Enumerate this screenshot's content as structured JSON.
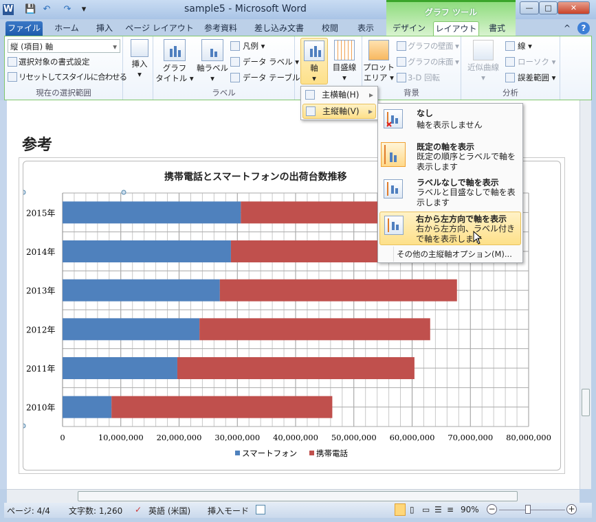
{
  "window": {
    "title": "sample5 - Microsoft Word",
    "context_tools": "グラフ ツール",
    "minimize": "—",
    "restore": "□",
    "close": "✕"
  },
  "quick_access": {
    "app_icon": "W",
    "save": "💾",
    "undo": "↶",
    "redo": "↷",
    "customize": "▾"
  },
  "tabs": [
    "ファイル",
    "ホーム",
    "挿入",
    "ページ レイアウト",
    "参考資料",
    "差し込み文書",
    "校閲",
    "表示",
    "デザイン",
    "レイアウト",
    "書式"
  ],
  "help": "?",
  "ribbon": {
    "selection": {
      "dropdown_value": "縦 (項目) 軸",
      "format_selection": "選択対象の書式設定",
      "reset_style": "リセットしてスタイルに合わせる",
      "label": "現在の選択範囲"
    },
    "insert": {
      "label": "挿入"
    },
    "labels": {
      "chart_title": "グラフ\nタイトル ▾",
      "axis_titles": "軸ラベル",
      "legend": "凡例 ▾",
      "data_labels": "データ ラベル ▾",
      "data_table": "データ テーブル ▾",
      "label": "ラベル"
    },
    "axes": {
      "axes": "軸",
      "gridlines": "目盛線"
    },
    "background": {
      "plot_area": "プロット\nエリア ▾",
      "chart_wall": "グラフの壁面 ▾",
      "chart_floor": "グラフの床面 ▾",
      "rotation": "3-D 回転",
      "label": "背景"
    },
    "analysis": {
      "trendline": "近似曲線",
      "lines": "線 ▾",
      "updown_bars": "ローソク ▾",
      "error_bars": "誤差範囲 ▾",
      "label": "分析"
    }
  },
  "axes_menu": {
    "items": [
      "主横軸(H)",
      "主縦軸(V)"
    ]
  },
  "vertical_axis_menu": {
    "items": [
      {
        "title": "なし",
        "desc": "軸を表示しません"
      },
      {
        "title": "既定の軸を表示",
        "desc": "既定の順序とラベルで軸を表示します"
      },
      {
        "title": "ラベルなしで軸を表示",
        "desc": "ラベルと目盛なしで軸を表示します"
      },
      {
        "title": "右から左方向で軸を表示",
        "desc": "右から左方向、ラベル付きで軸を表示します"
      }
    ],
    "more": "その他の主縦軸オプション(M)..."
  },
  "document": {
    "heading": "参考"
  },
  "chart_data": {
    "type": "bar",
    "stacked": true,
    "orientation": "horizontal",
    "title": "携帯電話とスマートフォンの出荷台数推移",
    "categories": [
      "2015年",
      "2014年",
      "2013年",
      "2012年",
      "2011年",
      "2010年"
    ],
    "series": [
      {
        "name": "スマートフォン",
        "color": "#4f81bd",
        "values": [
          30600000,
          28900000,
          27000000,
          23500000,
          19700000,
          8400000
        ]
      },
      {
        "name": "携帯電話",
        "color": "#c0504d",
        "values": [
          32400000,
          36100000,
          40700000,
          39600000,
          40700000,
          37900000
        ]
      }
    ],
    "xlim": [
      0,
      80000000
    ],
    "xticks": [
      "0",
      "10,000,000",
      "20,000,000",
      "30,000,000",
      "40,000,000",
      "50,000,000",
      "60,000,000",
      "70,000,000",
      "80,000,000"
    ],
    "grid": true,
    "legend": "bottom"
  },
  "status": {
    "page": "ページ: 4/4",
    "words": "文字数: 1,260",
    "language": "英語 (米国)",
    "mode": "挿入モード",
    "zoom": "90%"
  }
}
